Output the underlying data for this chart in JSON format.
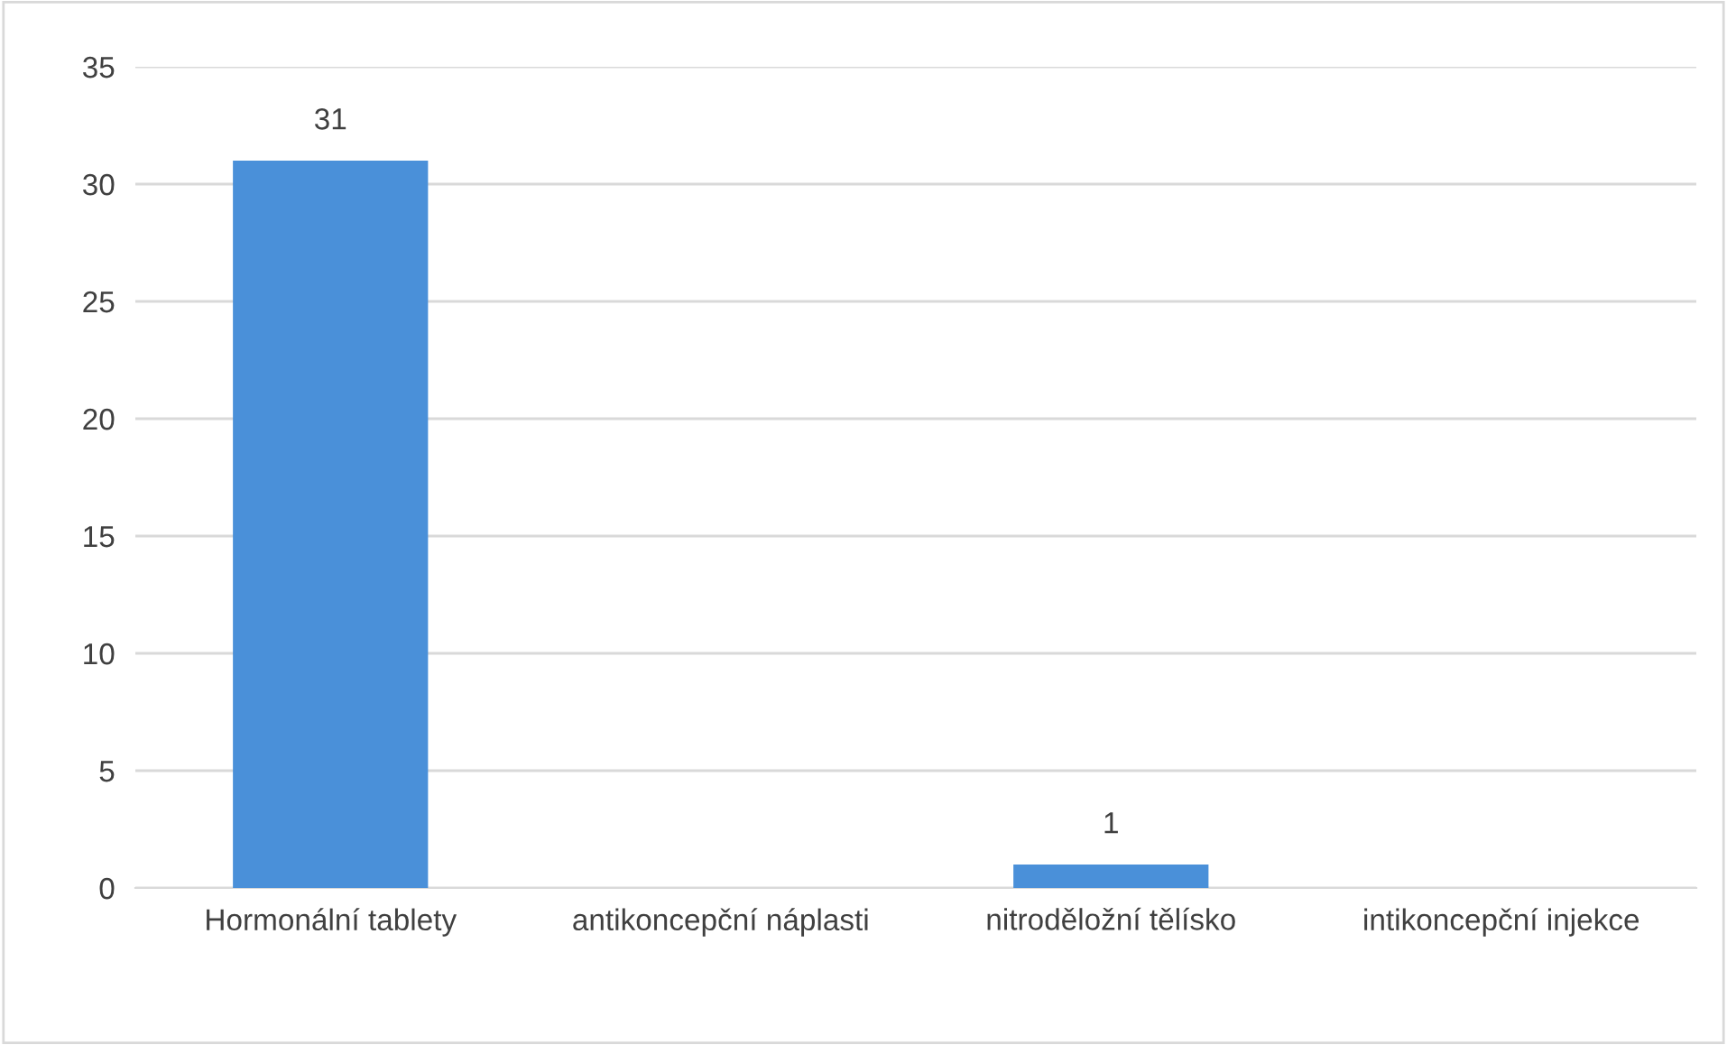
{
  "chart_data": {
    "type": "bar",
    "categories": [
      "Hormonální tablety",
      "antikoncepční náplasti",
      "nitroděložní tělísko",
      "intikoncepční injekce"
    ],
    "values": [
      31,
      0,
      1,
      0
    ],
    "value_labels": [
      "31",
      null,
      "1",
      null
    ],
    "color": "#4a90d9",
    "ylim": [
      0,
      35
    ],
    "yticks": [
      0,
      5,
      10,
      15,
      20,
      25,
      30,
      35
    ],
    "grid": "y"
  }
}
